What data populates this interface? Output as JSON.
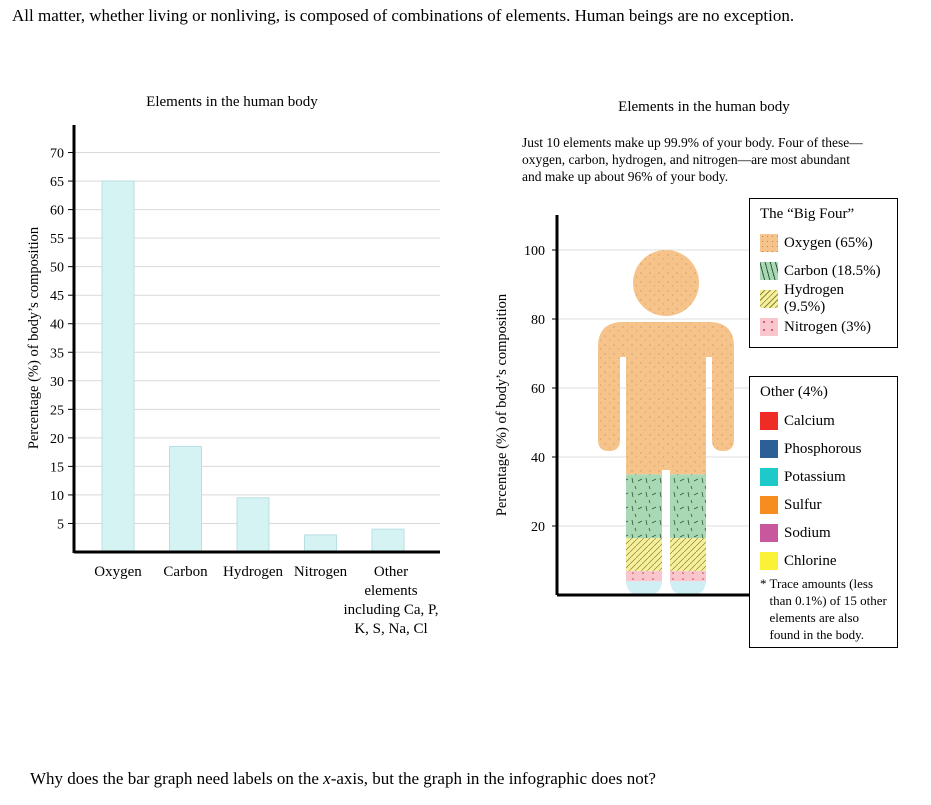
{
  "intro_text": "All matter, whether living or nonliving, is composed of combinations of elements. Human beings are no exception.",
  "question_parts": {
    "before": "Why does the bar graph need labels on the ",
    "axis": "x",
    "after": "-axis, but the graph in the infographic does not?"
  },
  "chart_data": [
    {
      "type": "bar",
      "title": "Elements in the human body",
      "xlabel": "",
      "ylabel": "Percentage (%) of body’s composition",
      "categories": [
        "Oxygen",
        "Carbon",
        "Hydrogen",
        "Nitrogen",
        "Other elements including Ca, P, K, S, Na, Cl"
      ],
      "category_label_lines": [
        [
          "Oxygen"
        ],
        [
          "Carbon"
        ],
        [
          "Hydrogen"
        ],
        [
          "Nitrogen"
        ],
        [
          "Other",
          "elements",
          "including Ca, P,",
          "K, S, Na, Cl"
        ]
      ],
      "values": [
        65,
        18.5,
        9.5,
        3,
        4
      ],
      "ylim": [
        0,
        75
      ],
      "yticks": [
        5,
        10,
        15,
        20,
        25,
        30,
        35,
        40,
        45,
        50,
        55,
        60,
        65,
        70
      ],
      "grid": true,
      "bar_color": "#d6f3f3"
    },
    {
      "type": "stacked-figure",
      "title": "Elements in the human body",
      "description": "Just 10 elements make up 99.9% of your body. Four of these—oxygen, carbon, hydrogen, and nitrogen—are most abundant and make up about 96% of your body.",
      "ylabel": "Percentage (%) of body’s composition",
      "ylim": [
        0,
        108
      ],
      "yticks": [
        20,
        40,
        60,
        80,
        100
      ],
      "grid": true,
      "segments": [
        {
          "name": "Other",
          "value": 4,
          "color": "#cfeff4"
        },
        {
          "name": "Nitrogen",
          "value": 3,
          "color": "#f8c6cc"
        },
        {
          "name": "Hydrogen",
          "value": 9.5,
          "color": "#f7f09a"
        },
        {
          "name": "Carbon",
          "value": 18.5,
          "color": "#a9d9b4"
        },
        {
          "name": "Oxygen",
          "value": 65,
          "color": "#f6c48b"
        }
      ],
      "legend_big_four": {
        "title": "The “Big Four”",
        "items": [
          {
            "label": "Oxygen (65%)",
            "color": "#f6c48b",
            "pattern": "dots"
          },
          {
            "label": "Carbon (18.5%)",
            "color": "#a9d9b4",
            "pattern": "dashes"
          },
          {
            "label": "Hydrogen (9.5%)",
            "color": "#f7f09a",
            "pattern": "hatch"
          },
          {
            "label": "Nitrogen (3%)",
            "color": "#f8c6cc",
            "pattern": "specks"
          }
        ]
      },
      "legend_other": {
        "title": "Other (4%)",
        "items": [
          {
            "label": "Calcium",
            "color": "#ee2b24"
          },
          {
            "label": "Phosphorous",
            "color": "#2b5f95"
          },
          {
            "label": "Potassium",
            "color": "#1dc9c9"
          },
          {
            "label": "Sulfur",
            "color": "#f78d1e"
          },
          {
            "label": "Sodium",
            "color": "#c9579e"
          },
          {
            "label": "Chlorine",
            "color": "#fbf237"
          }
        ],
        "note_star": "*",
        "note": "Trace amounts (less than 0.1%) of 15 other elements are also found in the body."
      }
    }
  ]
}
